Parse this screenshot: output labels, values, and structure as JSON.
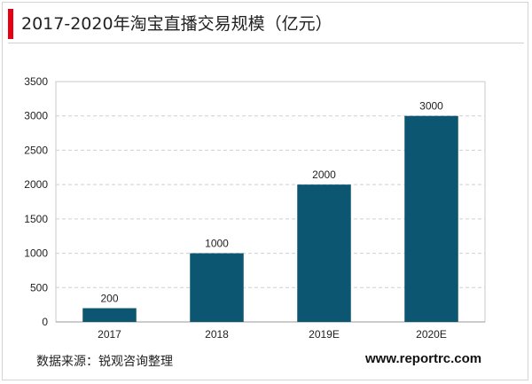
{
  "header": {
    "title": "2017-2020年淘宝直播交易规模（亿元）",
    "accent_color": "#e60012"
  },
  "chart_data": {
    "type": "bar",
    "title": "2017-2020年淘宝直播交易规模（亿元）",
    "categories": [
      "2017",
      "2018",
      "2019E",
      "2020E"
    ],
    "values": [
      200,
      1000,
      2000,
      3000
    ],
    "data_labels": [
      "200",
      "1000",
      "2000",
      "3000"
    ],
    "ylim": [
      0,
      3500
    ],
    "yticks": [
      0,
      500,
      1000,
      1500,
      2000,
      2500,
      3000,
      3500
    ],
    "xlabel": "",
    "ylabel": "",
    "grid": true,
    "grid_style": "dashed horizontal",
    "bar_color": "#0d5671"
  },
  "footer": {
    "source": "数据来源：锐观咨询整理",
    "website": "www.reportrc.com"
  }
}
